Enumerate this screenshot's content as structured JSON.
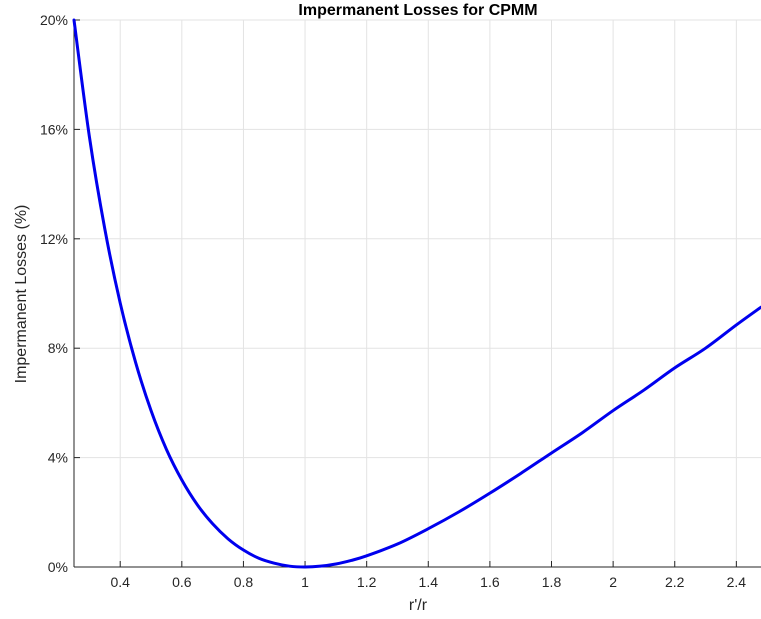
{
  "chart_data": {
    "type": "line",
    "title": "Impermanent Losses for CPMM",
    "xlabel": "r'/r",
    "ylabel": "Impermanent Losses (%)",
    "xlim": [
      0.25,
      2.48
    ],
    "ylim": [
      0,
      20
    ],
    "grid": true,
    "x_ticks": [
      0.4,
      0.6,
      0.8,
      1,
      1.2,
      1.4,
      1.6,
      1.8,
      2,
      2.2,
      2.4
    ],
    "x_tick_labels": [
      "0.4",
      "0.6",
      "0.8",
      "1",
      "1.2",
      "1.4",
      "1.6",
      "1.8",
      "2",
      "2.2",
      "2.4"
    ],
    "y_ticks": [
      0,
      4,
      8,
      12,
      16,
      20
    ],
    "y_tick_labels": [
      "0%",
      "4%",
      "8%",
      "12%",
      "16%",
      "20%"
    ],
    "colors": {
      "line": "#0000ee",
      "grid": "#e3e3e3",
      "axis": "#262626"
    },
    "series": [
      {
        "x": [
          0.25,
          0.3,
          0.35,
          0.4,
          0.45,
          0.5,
          0.55,
          0.6,
          0.65,
          0.7,
          0.75,
          0.8,
          0.85,
          0.9,
          0.95,
          1,
          1.05,
          1.1,
          1.15,
          1.2,
          1.3,
          1.4,
          1.5,
          1.6,
          1.7,
          1.8,
          1.9,
          2,
          2.1,
          2.2,
          2.3,
          2.4,
          2.48
        ],
        "values": [
          20.0,
          15.73,
          12.36,
          9.65,
          7.48,
          5.72,
          4.3,
          3.18,
          2.28,
          1.58,
          1.03,
          0.62,
          0.32,
          0.14,
          0.03,
          0.0,
          0.03,
          0.11,
          0.24,
          0.41,
          0.84,
          1.4,
          2.02,
          2.7,
          3.42,
          4.17,
          4.91,
          5.72,
          6.47,
          7.28,
          8.0,
          8.85,
          9.5
        ]
      }
    ]
  }
}
